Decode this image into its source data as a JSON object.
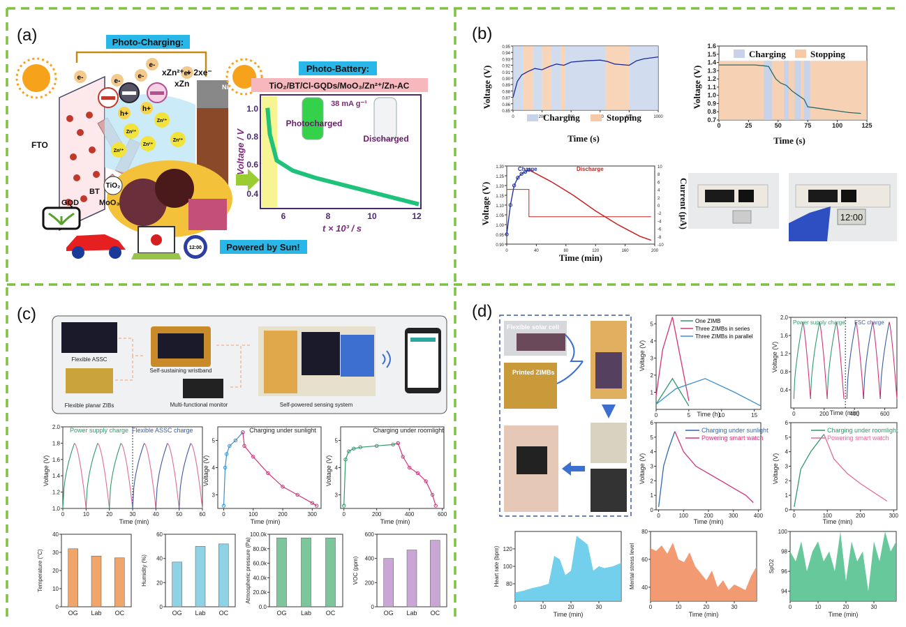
{
  "panels": {
    "a": {
      "label": "(a)"
    },
    "b": {
      "label": "(b)"
    },
    "c": {
      "label": "(c)"
    },
    "d": {
      "label": "(d)"
    }
  },
  "a": {
    "photo_charging": "Photo-Charging:",
    "eminus": "e-",
    "hplus": "h+",
    "zn_reaction": "xZn²⁺ + 2xe⁻",
    "xzn": "xZn",
    "zn2": "Zn²⁺",
    "fto": "FTO",
    "bt": "BT",
    "gqd": "GQD",
    "tio2": "TiO₂",
    "moo3": "MoO₃",
    "ni": "Ni",
    "photo_battery": "Photo-Battery:",
    "battery_formula": "TiO₂/BT/Cl-GQDs/MoO₃/Zn²⁺/Zn-AC",
    "current": "38 mA g⁻¹",
    "photocharged": "Photocharged",
    "discharged": "Discharged",
    "ylabel": "Voltage / V",
    "xlabel": "t × 10³ / s",
    "powered": "Powered by Sun!",
    "clock": "12:00"
  },
  "b": {
    "charging": "Charging",
    "stopping": "Stopping",
    "ylabel": "Voltage (V)",
    "xlabel_s": "Time (s)",
    "xlabel_min": "Time (min)",
    "ylabel_current": "Current (μA)",
    "charge": "Charge",
    "discharge": "Discharge",
    "display": "12:00"
  },
  "c": {
    "flexible_assc": "Flexible ASSC",
    "flexible_planar": "Flexible planar ZIBs",
    "wristband": "Self-sustaining wristband",
    "monitor": "Multi-functional monitor",
    "sensing": "Self-powered sensing system",
    "power_supply": "Power supply charge",
    "assc_charge": "Flexible ASSC charge",
    "sunlight": "Charging under sunlight",
    "roomlight": "Charging under roomlight",
    "ylabel_v": "Voltage (V)",
    "xlabel_min": "Time (min)"
  },
  "d": {
    "solar": "Flexible solar cell",
    "printed": "Printed ZIMBs",
    "one": "One ZIMB",
    "series": "Three ZIMBs in series",
    "parallel": "Three ZIMBs in parallel",
    "ps_charge": "Power supply charge",
    "fsc_charge": "FSC charge",
    "charging_sun": "Charging under sunlight",
    "power_watch": "Powering smart watch",
    "charging_room": "Charging under roomlight",
    "ylabel_v": "Voltage (V)",
    "xlabel_h": "Time (h)",
    "xlabel_min": "Time (min)",
    "heart": "Heart rate (bpm)",
    "stress": "Mental stress level",
    "spo2": "SpO2"
  },
  "chart_data": [
    {
      "type": "line",
      "ylabel": "Voltage (V)",
      "xlabel": "Time (s)",
      "ylim": [
        0.85,
        0.95
      ],
      "xlim": [
        0,
        1000
      ],
      "x": [
        0,
        30,
        60,
        100,
        150,
        200,
        250,
        300,
        350,
        400,
        500,
        600,
        650,
        700,
        750,
        800,
        850,
        900,
        1000
      ],
      "values": [
        0.87,
        0.895,
        0.905,
        0.91,
        0.915,
        0.913,
        0.918,
        0.922,
        0.92,
        0.925,
        0.927,
        0.928,
        0.926,
        0.922,
        0.921,
        0.92,
        0.927,
        0.93,
        0.933
      ]
    },
    {
      "type": "line",
      "ylabel": "Voltage (V)",
      "xlabel": "Time (s)",
      "ylim": [
        0.7,
        1.6
      ],
      "xlim": [
        0,
        125
      ],
      "x": [
        0,
        10,
        20,
        30,
        38,
        42,
        48,
        52,
        57,
        62,
        67,
        72,
        75,
        80,
        90,
        100,
        110,
        120
      ],
      "values": [
        1.37,
        1.37,
        1.37,
        1.37,
        1.36,
        1.35,
        1.2,
        1.15,
        1.12,
        1.05,
        1.0,
        0.95,
        0.86,
        0.85,
        0.83,
        0.81,
        0.79,
        0.78
      ]
    },
    {
      "type": "line",
      "ylabel": "Voltage (V)",
      "xlabel": "Time (min)",
      "ylim": [
        0.9,
        1.3
      ],
      "xlim": [
        0,
        200
      ],
      "series": [
        {
          "name": "Charge",
          "x": [
            0,
            5,
            10,
            15,
            20,
            25,
            30
          ],
          "values": [
            0.95,
            1.1,
            1.2,
            1.24,
            1.26,
            1.27,
            1.28
          ]
        },
        {
          "name": "Discharge",
          "x": [
            30,
            60,
            90,
            120,
            150,
            180,
            195
          ],
          "values": [
            1.28,
            1.22,
            1.15,
            1.07,
            1.0,
            0.94,
            0.92
          ]
        }
      ]
    },
    {
      "type": "line",
      "ylabel": "Voltage (V)",
      "xlabel": "Time (min)",
      "ylim": [
        1.0,
        2.0
      ],
      "xlim": [
        0,
        60
      ],
      "series": [
        {
          "name": "Power supply charge",
          "x": [
            0,
            5,
            10,
            15,
            20,
            25,
            30
          ],
          "values": [
            1.0,
            1.8,
            1.0,
            1.8,
            1.0,
            1.8,
            1.0
          ]
        },
        {
          "name": "Flexible ASSC charge",
          "x": [
            30,
            35,
            40,
            45,
            50,
            55,
            60
          ],
          "values": [
            1.0,
            1.8,
            1.0,
            1.8,
            1.0,
            1.8,
            1.0
          ]
        }
      ]
    },
    {
      "type": "line",
      "title": "Charging under sunlight",
      "ylabel": "Voltage (V)",
      "xlabel": "Time (min)",
      "ylim": [
        2.5,
        5.5
      ],
      "xlim": [
        0,
        320
      ],
      "x": [
        0,
        5,
        10,
        20,
        40,
        65,
        70,
        100,
        150,
        200,
        250,
        300,
        315
      ],
      "values": [
        2.6,
        4.0,
        4.5,
        4.8,
        5.0,
        5.3,
        4.8,
        4.4,
        3.8,
        3.3,
        3.0,
        2.7,
        2.6
      ]
    },
    {
      "type": "line",
      "title": "Charging under roomlight",
      "ylabel": "Voltage (V)",
      "xlabel": "Time (min)",
      "ylim": [
        2.5,
        5.5
      ],
      "xlim": [
        0,
        600
      ],
      "x": [
        0,
        10,
        30,
        60,
        100,
        200,
        300,
        330,
        360,
        400,
        450,
        500,
        540,
        560
      ],
      "values": [
        2.6,
        4.3,
        4.6,
        4.7,
        4.75,
        4.8,
        4.85,
        4.9,
        4.4,
        4.0,
        3.8,
        3.5,
        3.0,
        2.6
      ]
    },
    {
      "type": "bar",
      "ylabel": "Temperature (°C)",
      "categories": [
        "OG",
        "Lab",
        "OC"
      ],
      "values": [
        32,
        28,
        27
      ],
      "ylim": [
        0,
        40
      ]
    },
    {
      "type": "bar",
      "ylabel": "Humidity (%)",
      "categories": [
        "OG",
        "Lab",
        "OC"
      ],
      "values": [
        37,
        50,
        52
      ],
      "ylim": [
        0,
        60
      ]
    },
    {
      "type": "bar",
      "ylabel": "Atmospheric pressure (Pa)",
      "categories": [
        "OG",
        "Lab",
        "OC"
      ],
      "values": [
        95000,
        95000,
        95000
      ],
      "ylim": [
        0,
        100000
      ]
    },
    {
      "type": "bar",
      "ylabel": "VOC (ppm)",
      "categories": [
        "OG",
        "Lab",
        "OC"
      ],
      "values": [
        400,
        470,
        550
      ],
      "ylim": [
        0,
        600
      ]
    },
    {
      "type": "line",
      "ylabel": "Voltage (V)",
      "xlabel": "Time (h)",
      "ylim": [
        0,
        5.5
      ],
      "xlim": [
        0,
        16
      ],
      "series": [
        {
          "name": "One ZIMB",
          "x": [
            0,
            2.5,
            5
          ],
          "values": [
            0.3,
            1.8,
            0.2
          ]
        },
        {
          "name": "Three ZIMBs in series",
          "x": [
            0,
            1,
            2.5,
            5
          ],
          "values": [
            0.8,
            3.5,
            5.4,
            0.5
          ]
        },
        {
          "name": "Three ZIMBs in parallel",
          "x": [
            0,
            3,
            7.5,
            12,
            16
          ],
          "values": [
            0.3,
            1.2,
            1.8,
            1.0,
            0.2
          ]
        }
      ]
    },
    {
      "type": "line",
      "ylabel": "Voltage (V)",
      "xlabel": "Time (min)",
      "ylim": [
        0,
        2.0
      ],
      "xlim": [
        0,
        650
      ],
      "series": [
        {
          "name": "Power supply charge",
          "x": [
            0,
            60,
            110,
            170,
            220,
            280,
            330
          ],
          "values": [
            0.2,
            1.9,
            0.2,
            1.9,
            0.2,
            1.9,
            0.2
          ]
        },
        {
          "name": "FSC charge",
          "x": [
            350,
            410,
            460,
            520,
            570,
            630,
            650
          ],
          "values": [
            0.2,
            1.9,
            0.2,
            1.9,
            0.2,
            1.9,
            0.2
          ]
        }
      ]
    },
    {
      "type": "line",
      "ylabel": "Voltage (V)",
      "xlabel": "Time (min)",
      "ylim": [
        0,
        6
      ],
      "xlim": [
        0,
        400
      ],
      "series": [
        {
          "name": "Charging under sunlight",
          "x": [
            0,
            20,
            40,
            65
          ],
          "values": [
            0.2,
            3.0,
            4.2,
            5.4
          ]
        },
        {
          "name": "Powering smart watch",
          "x": [
            65,
            100,
            150,
            200,
            250,
            300,
            350,
            380
          ],
          "values": [
            5.4,
            4.0,
            3.0,
            2.5,
            2.0,
            1.5,
            1.0,
            0.5
          ]
        }
      ]
    },
    {
      "type": "line",
      "ylabel": "Voltage (V)",
      "xlabel": "Time (min)",
      "ylim": [
        0,
        6
      ],
      "xlim": [
        0,
        300
      ],
      "series": [
        {
          "name": "Charging under roomlight",
          "x": [
            0,
            20,
            50,
            90
          ],
          "values": [
            0.2,
            2.8,
            4.0,
            5.2
          ]
        },
        {
          "name": "Powering smart watch",
          "x": [
            90,
            120,
            160,
            200,
            240,
            280
          ],
          "values": [
            5.2,
            3.5,
            2.5,
            1.8,
            1.2,
            0.6
          ]
        }
      ]
    },
    {
      "type": "area",
      "ylabel": "Heart rate (bpm)",
      "xlabel": "Time (min)",
      "ylim": [
        60,
        140
      ],
      "xlim": [
        0,
        38
      ],
      "x": [
        0,
        3,
        6,
        9,
        12,
        14,
        16,
        18,
        20,
        22,
        24,
        26,
        28,
        30,
        32,
        35,
        38
      ],
      "values": [
        70,
        72,
        75,
        77,
        80,
        112,
        108,
        90,
        95,
        135,
        130,
        125,
        95,
        100,
        98,
        100,
        104
      ]
    },
    {
      "type": "area",
      "ylabel": "Mental stress level",
      "xlabel": "Time (min)",
      "ylim": [
        30,
        80
      ],
      "xlim": [
        0,
        38
      ],
      "x": [
        0,
        2,
        4,
        6,
        8,
        10,
        12,
        14,
        16,
        18,
        20,
        22,
        24,
        26,
        28,
        30,
        32,
        34,
        36,
        38
      ],
      "values": [
        68,
        66,
        70,
        64,
        72,
        60,
        58,
        65,
        55,
        50,
        45,
        52,
        40,
        45,
        38,
        42,
        40,
        38,
        48,
        55
      ]
    },
    {
      "type": "area",
      "ylabel": "SpO2",
      "xlabel": "Time (min)",
      "ylim": [
        93,
        100
      ],
      "xlim": [
        0,
        38
      ],
      "x": [
        0,
        2,
        4,
        6,
        8,
        10,
        12,
        14,
        16,
        18,
        20,
        22,
        24,
        26,
        28,
        30,
        32,
        34,
        36,
        38
      ],
      "values": [
        98,
        97,
        99,
        96,
        98,
        99,
        97,
        98,
        96,
        100,
        95,
        99,
        97,
        98,
        94,
        99,
        97,
        100,
        98,
        99
      ]
    }
  ]
}
